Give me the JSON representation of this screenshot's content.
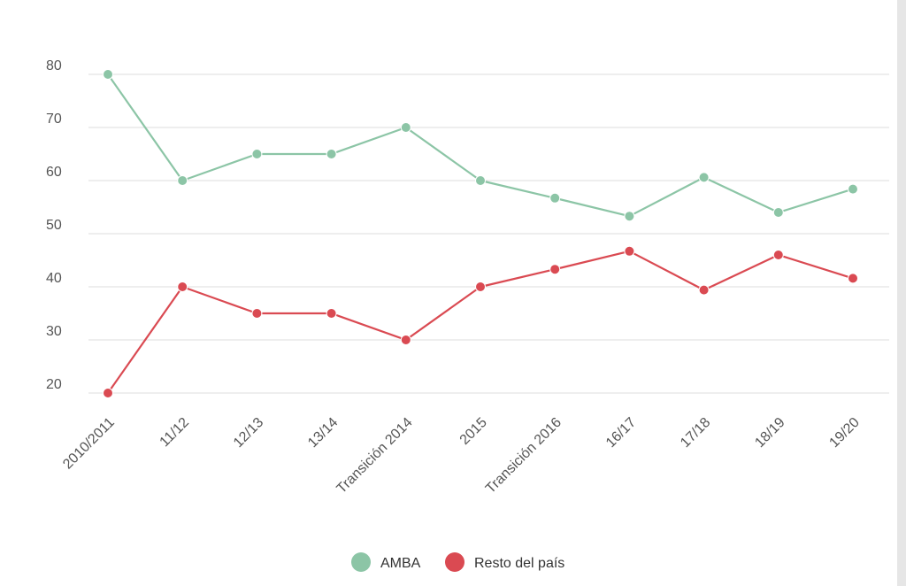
{
  "chart_data": {
    "type": "line",
    "title": "",
    "xlabel": "",
    "ylabel": "",
    "categories": [
      "2010/2011",
      "11/12",
      "12/13",
      "13/14",
      "Transición 2014",
      "2015",
      "Transición 2016",
      "16/17",
      "17/18",
      "18/19",
      "19/20"
    ],
    "ylim": [
      15,
      85
    ],
    "yticks": [
      20,
      30,
      40,
      50,
      60,
      70,
      80
    ],
    "grid": true,
    "legend_position": "bottom",
    "series": [
      {
        "name": "AMBA",
        "color": "#8cc5a6",
        "values": [
          80,
          60,
          65,
          65,
          70,
          60,
          56.7,
          53.3,
          60.6,
          54,
          58.4
        ]
      },
      {
        "name": "Resto del país",
        "color": "#da4a52",
        "values": [
          20,
          40,
          35,
          35,
          30,
          40,
          43.3,
          46.7,
          39.4,
          46,
          41.6
        ]
      }
    ]
  }
}
